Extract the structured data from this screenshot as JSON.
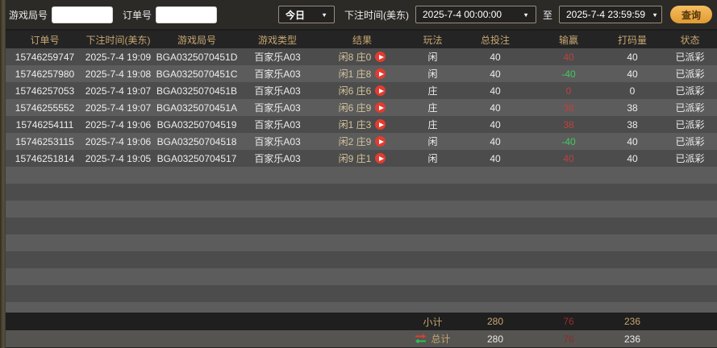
{
  "topbar": {
    "game_round_label": "游戏局号",
    "game_round_value": "",
    "order_label": "订单号",
    "order_value": "",
    "period": "今日",
    "bet_time_label": "下注时间(美东)",
    "date_from": "2025-7-4 00:00:00",
    "to_label": "至",
    "date_to": "2025-7-4 23:59:59",
    "query_label": "查询",
    "dropdown_arrow": "▼"
  },
  "table": {
    "headers": [
      "订单号",
      "下注时间(美东)",
      "游戏局号",
      "游戏类型",
      "结果",
      "玩法",
      "总投注",
      "输赢",
      "打码量",
      "状态"
    ],
    "rows": [
      {
        "order_no": "15746259747",
        "bet_time": "2025-7-4 19:09",
        "round_no": "BGA0325070451D",
        "game_type": "百家乐A03",
        "result": "闲8 庄0",
        "play": "闲",
        "total_bet": "40",
        "win_loss": "40",
        "turnover": "40",
        "status": "已派彩"
      },
      {
        "order_no": "15746257980",
        "bet_time": "2025-7-4 19:08",
        "round_no": "BGA0325070451C",
        "game_type": "百家乐A03",
        "result": "闲1 庄8",
        "play": "闲",
        "total_bet": "40",
        "win_loss": "-40",
        "turnover": "40",
        "status": "已派彩"
      },
      {
        "order_no": "15746257053",
        "bet_time": "2025-7-4 19:07",
        "round_no": "BGA0325070451B",
        "game_type": "百家乐A03",
        "result": "闲6 庄6",
        "play": "庄",
        "total_bet": "40",
        "win_loss": "0",
        "turnover": "0",
        "status": "已派彩"
      },
      {
        "order_no": "15746255552",
        "bet_time": "2025-7-4 19:07",
        "round_no": "BGA0325070451A",
        "game_type": "百家乐A03",
        "result": "闲6 庄9",
        "play": "庄",
        "total_bet": "40",
        "win_loss": "38",
        "turnover": "38",
        "status": "已派彩"
      },
      {
        "order_no": "15746254111",
        "bet_time": "2025-7-4 19:06",
        "round_no": "BGA03250704519",
        "game_type": "百家乐A03",
        "result": "闲1 庄3",
        "play": "庄",
        "total_bet": "40",
        "win_loss": "38",
        "turnover": "38",
        "status": "已派彩"
      },
      {
        "order_no": "15746253115",
        "bet_time": "2025-7-4 19:06",
        "round_no": "BGA03250704518",
        "game_type": "百家乐A03",
        "result": "闲2 庄9",
        "play": "闲",
        "total_bet": "40",
        "win_loss": "-40",
        "turnover": "40",
        "status": "已派彩"
      },
      {
        "order_no": "15746251814",
        "bet_time": "2025-7-4 19:05",
        "round_no": "BGA03250704517",
        "game_type": "百家乐A03",
        "result": "闲9 庄1",
        "play": "闲",
        "total_bet": "40",
        "win_loss": "40",
        "turnover": "40",
        "status": "已派彩"
      }
    ],
    "subtotal": {
      "label": "小计",
      "total_bet": "280",
      "win_loss": "76",
      "turnover": "236"
    },
    "total": {
      "label": "总计",
      "total_bet": "280",
      "win_loss": "76",
      "turnover": "236"
    }
  },
  "icons": {
    "play_icon": "red-circle-play-triangle",
    "swap_icon": "red-green-exchange-arrows",
    "dropdown_icon": "chevron-down"
  },
  "colors": {
    "accent_gold": "#c6a671",
    "win_positive_red": "#c04040",
    "win_negative_green": "#3fcb5d",
    "summary_win_red": "#9a2c2c",
    "query_button_gold": "#e8a849",
    "row_dark": "#4c4c4c",
    "row_light": "#5c5c5c",
    "topbar_bg": "#2b2a27"
  }
}
